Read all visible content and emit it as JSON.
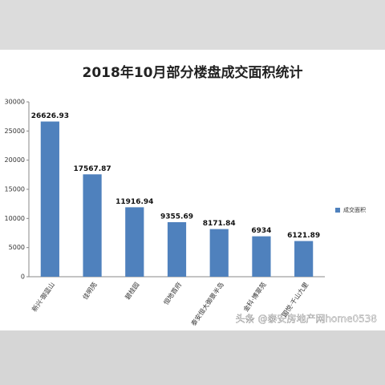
{
  "chart_data": {
    "type": "bar",
    "title": "2018年10月部分楼盘成交面积统计",
    "categories": [
      "新兴·御蓝山",
      "佳明苑",
      "碧桂园",
      "恒地首府",
      "泰安恒大御景半岛",
      "金科·博翠苑",
      "国悦·千山九里"
    ],
    "series": [
      {
        "name": "成交面积",
        "color": "#4f81bd",
        "values": [
          26626.93,
          17567.87,
          11916.94,
          9355.69,
          8171.84,
          6934,
          6121.89
        ]
      }
    ],
    "ylim": [
      0,
      30000
    ],
    "yticks": [
      0,
      5000,
      10000,
      15000,
      20000,
      25000,
      30000
    ],
    "legend": "right",
    "watermark": "头条 @泰安房地产网home0538"
  }
}
